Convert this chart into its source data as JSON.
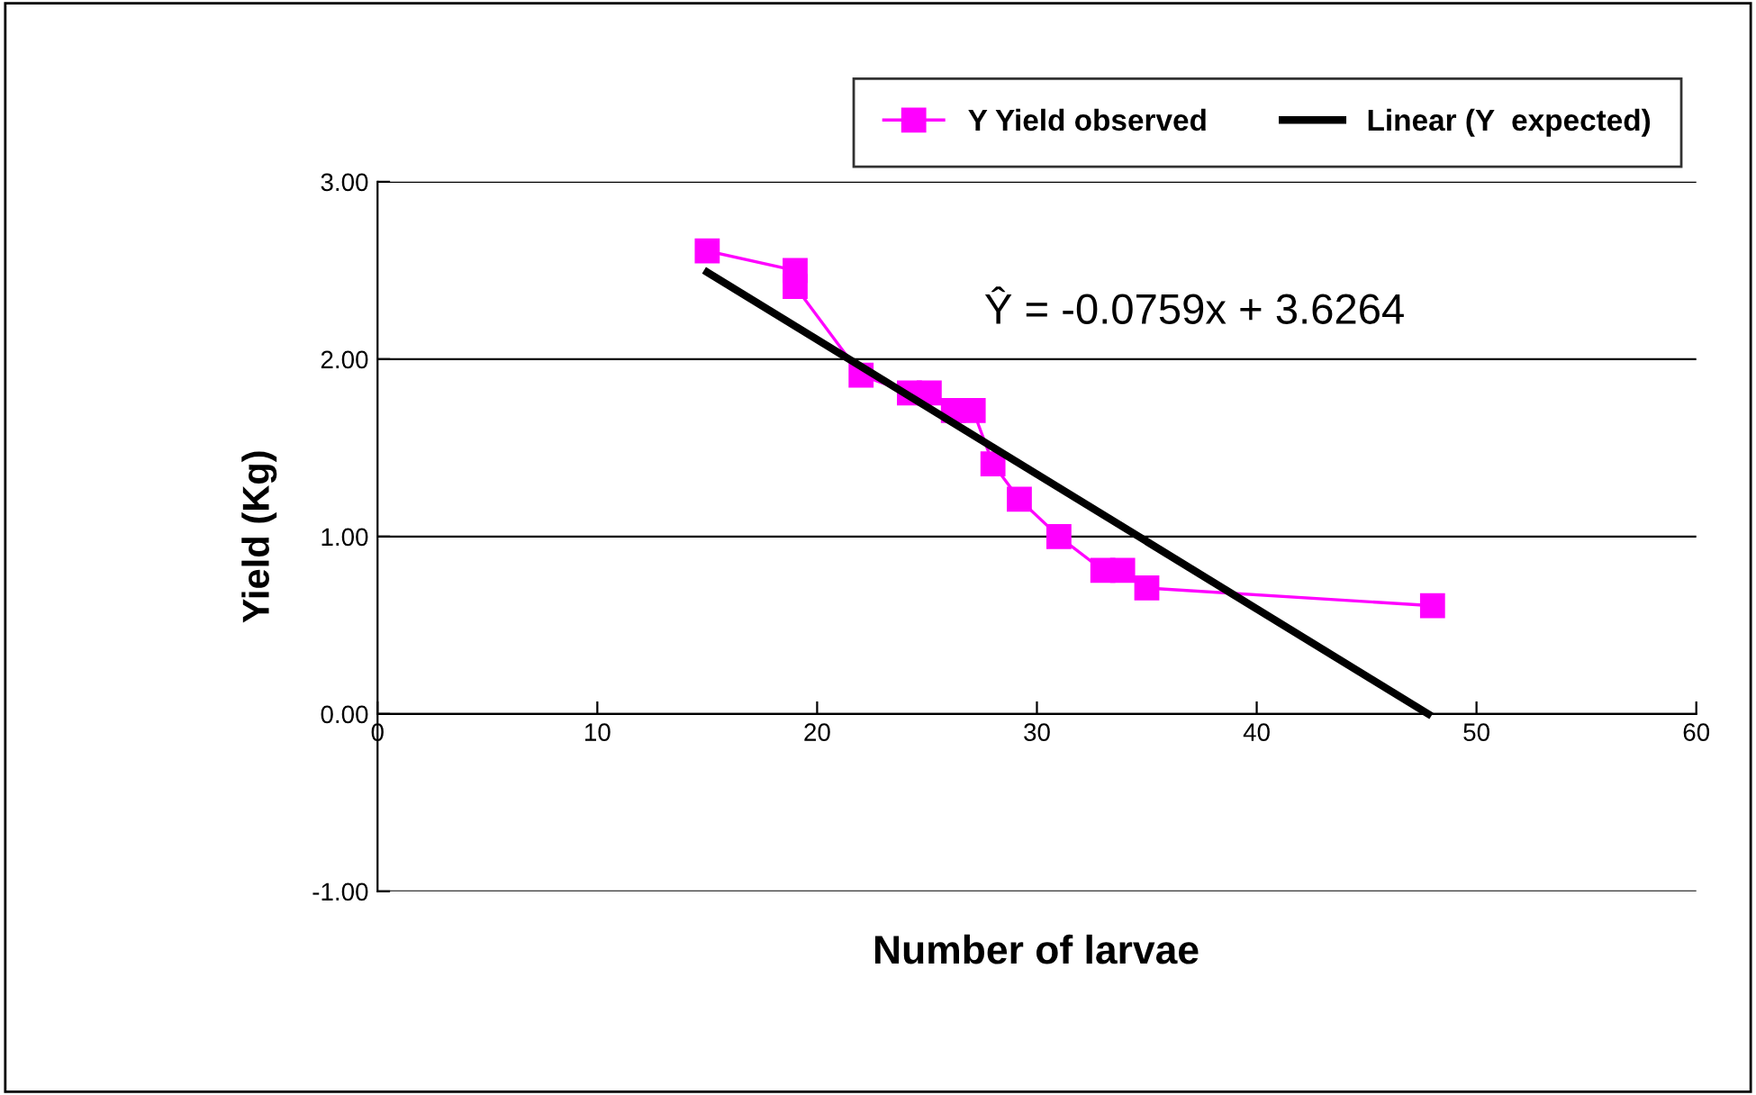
{
  "chart_data": {
    "type": "line",
    "xlabel": "Number of larvae",
    "ylabel": "Yield (Kg)",
    "annotations": [
      "Ŷ = -0.0759x + 3.6264"
    ],
    "series": [
      {
        "name": "Y Yield observed",
        "color": "#ff00ff",
        "marker": "square",
        "x": [
          15.0,
          19.0,
          19.0,
          22.0,
          24.2,
          25.1,
          26.2,
          27.1,
          28.0,
          29.2,
          31.0,
          33.0,
          33.9,
          35.0,
          48.0
        ],
        "values": [
          2.61,
          2.5,
          2.41,
          1.91,
          1.81,
          1.81,
          1.71,
          1.71,
          1.41,
          1.21,
          1.0,
          0.81,
          0.81,
          0.71,
          0.61
        ]
      },
      {
        "name": "Linear (Y  expected)",
        "color": "#000000",
        "marker": "none",
        "x": [
          15.0,
          47.8
        ],
        "values": [
          2.49,
          0.0
        ]
      }
    ],
    "xlim": [
      0,
      60
    ],
    "xticks": [
      0,
      10,
      20,
      30,
      40,
      50,
      60
    ],
    "ylim": [
      -1,
      3
    ],
    "yticks": [
      {
        "value": -1,
        "label": "-1.00"
      },
      {
        "value": 0,
        "label": "0.00"
      },
      {
        "value": 1,
        "label": "1.00"
      },
      {
        "value": 2,
        "label": "2.00"
      },
      {
        "value": 3,
        "label": "3.00"
      }
    ],
    "grid": "y",
    "legend": "top right"
  }
}
